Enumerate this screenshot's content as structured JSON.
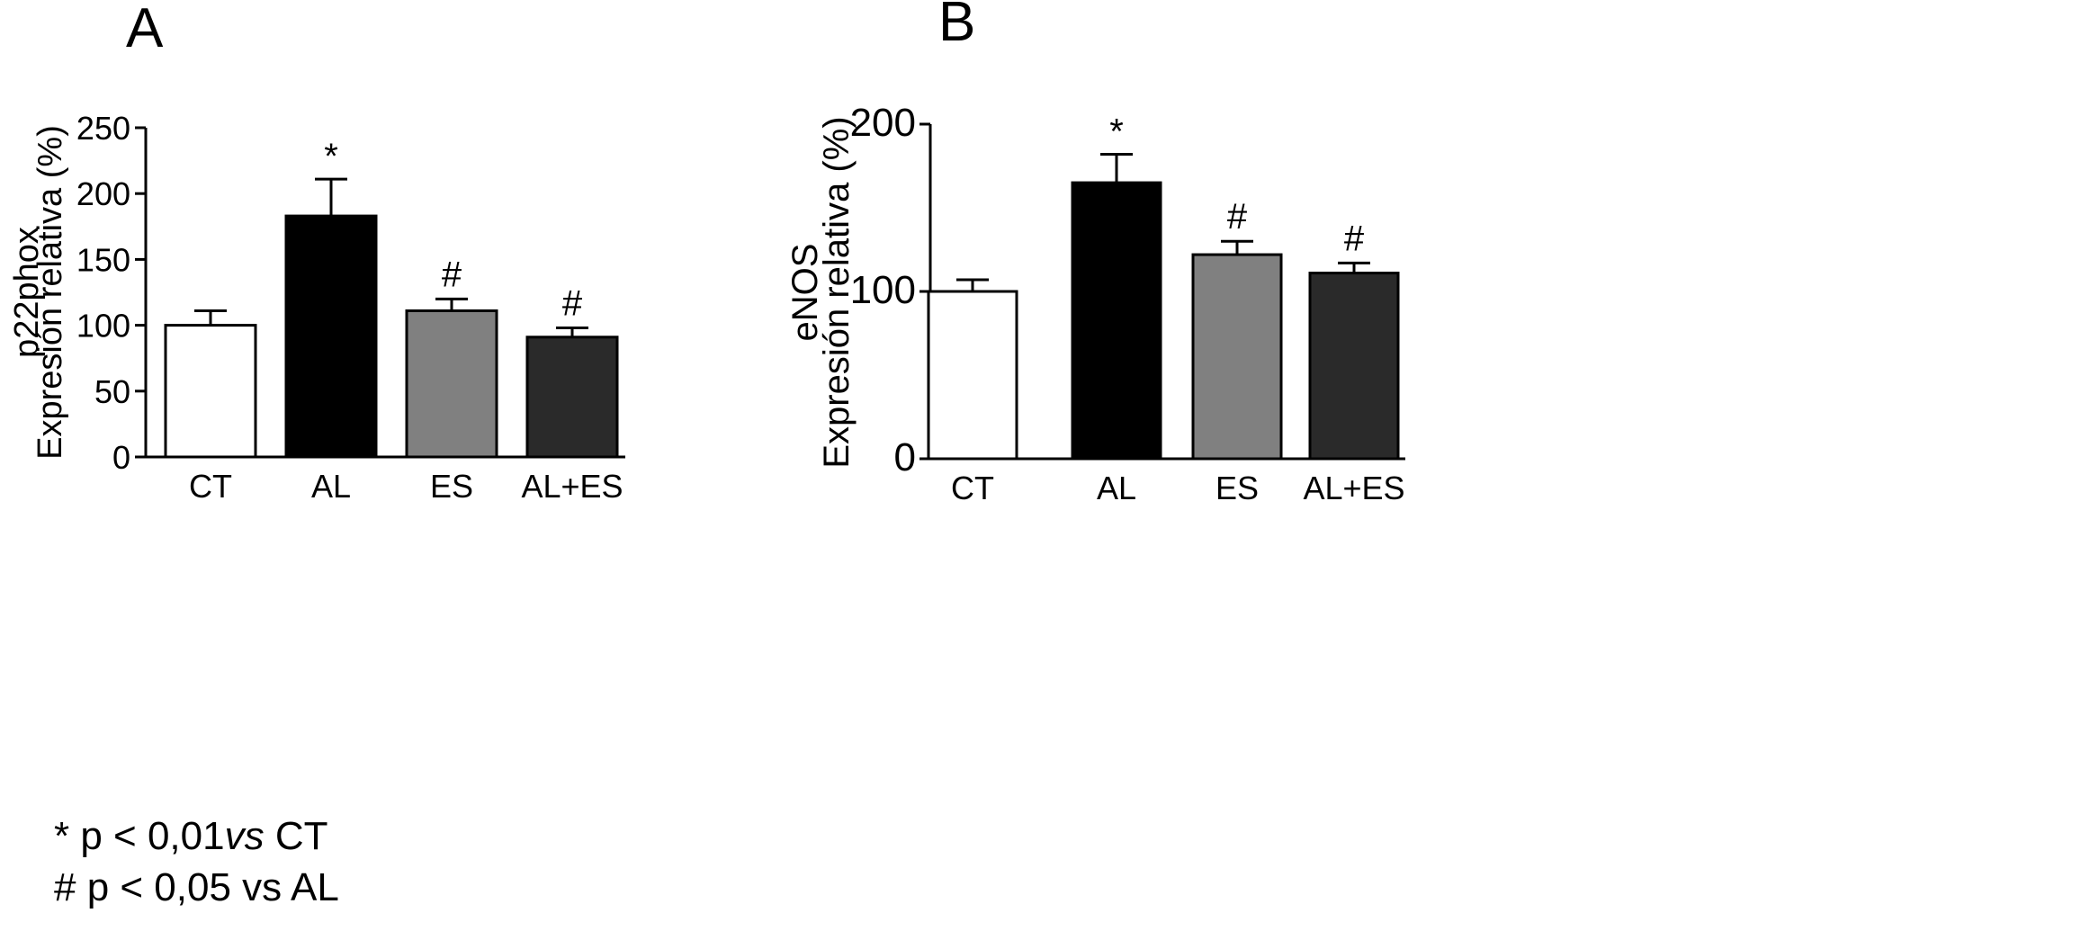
{
  "chart_data": [
    {
      "panel": "A",
      "type": "bar",
      "categories": [
        "CT",
        "AL",
        "ES",
        "AL+ES"
      ],
      "values": [
        100,
        183,
        111,
        91
      ],
      "errors": [
        11,
        28,
        9,
        7
      ],
      "annotations": [
        "",
        "*",
        "#",
        "#"
      ],
      "colors": [
        "#ffffff",
        "#000000",
        "#808080",
        "#2a2a2a"
      ],
      "ylabel": [
        "p22phox",
        "Expresión relativa (%)"
      ],
      "ylim": [
        0,
        250
      ],
      "yticks": [
        0,
        50,
        100,
        150,
        200,
        250
      ],
      "grid": false
    },
    {
      "panel": "B",
      "type": "bar",
      "categories": [
        "CT",
        "AL",
        "ES",
        "AL+ES"
      ],
      "values": [
        100,
        165,
        122,
        111
      ],
      "errors": [
        7,
        17,
        8,
        6
      ],
      "annotations": [
        "",
        "*",
        "#",
        "#"
      ],
      "colors": [
        "#ffffff",
        "#000000",
        "#808080",
        "#2a2a2a"
      ],
      "ylabel": [
        "eNOS",
        "Expresión relativa (%)"
      ],
      "ylim": [
        0,
        200
      ],
      "yticks": [
        0,
        100,
        200
      ],
      "grid": false
    }
  ],
  "footnotes": {
    "line1_prefix": "* p < 0,01",
    "line1_italic": "vs",
    "line1_suffix": " CT",
    "line2": "# p < 0,05 vs AL"
  }
}
